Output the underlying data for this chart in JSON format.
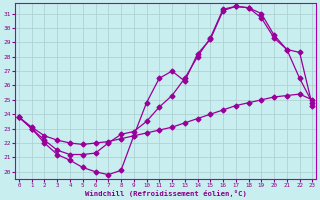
{
  "xlabel": "Windchill (Refroidissement éolien,°C)",
  "bg_color": "#c8eef0",
  "line_color": "#990099",
  "grid_color": "#aacccc",
  "spine_color": "#aa00aa",
  "tick_color": "#880088",
  "label_color": "#880088",
  "ylim": [
    19.5,
    31.7
  ],
  "xlim": [
    -0.3,
    23.3
  ],
  "yticks": [
    20,
    21,
    22,
    23,
    24,
    25,
    26,
    27,
    28,
    29,
    30,
    31
  ],
  "xticks": [
    0,
    1,
    2,
    3,
    4,
    5,
    6,
    7,
    8,
    9,
    10,
    11,
    12,
    13,
    14,
    15,
    16,
    17,
    18,
    19,
    20,
    21,
    22,
    23
  ],
  "line1_x": [
    0,
    1,
    2,
    3,
    4,
    5,
    6,
    7,
    8,
    9,
    10,
    11,
    12,
    13,
    14,
    15,
    16,
    17,
    18,
    19,
    20,
    21,
    22,
    23
  ],
  "line1_y": [
    23.8,
    23.0,
    22.0,
    21.2,
    20.8,
    20.3,
    20.0,
    19.8,
    20.1,
    22.5,
    24.8,
    26.5,
    27.0,
    26.3,
    28.2,
    29.2,
    31.2,
    31.5,
    31.4,
    30.7,
    29.3,
    28.5,
    28.3,
    24.6
  ],
  "line2_x": [
    0,
    1,
    2,
    3,
    4,
    5,
    6,
    7,
    8,
    9,
    10,
    11,
    12,
    13,
    14,
    15,
    16,
    17,
    18,
    19,
    20,
    21,
    22,
    23
  ],
  "line2_y": [
    23.8,
    23.0,
    22.2,
    21.5,
    21.2,
    21.2,
    21.3,
    22.0,
    22.6,
    22.8,
    23.5,
    24.5,
    25.3,
    26.5,
    28.0,
    29.3,
    31.3,
    31.5,
    31.4,
    31.0,
    29.5,
    28.5,
    26.5,
    24.8
  ],
  "line3_x": [
    0,
    1,
    2,
    3,
    4,
    5,
    6,
    7,
    8,
    9,
    10,
    11,
    12,
    13,
    14,
    15,
    16,
    17,
    18,
    19,
    20,
    21,
    22,
    23
  ],
  "line3_y": [
    23.8,
    23.1,
    22.5,
    22.2,
    22.0,
    21.9,
    22.0,
    22.1,
    22.3,
    22.5,
    22.7,
    22.9,
    23.1,
    23.4,
    23.7,
    24.0,
    24.3,
    24.6,
    24.8,
    25.0,
    25.2,
    25.3,
    25.4,
    25.0
  ],
  "marker": "D",
  "markersize": 2.5,
  "linewidth": 0.9
}
